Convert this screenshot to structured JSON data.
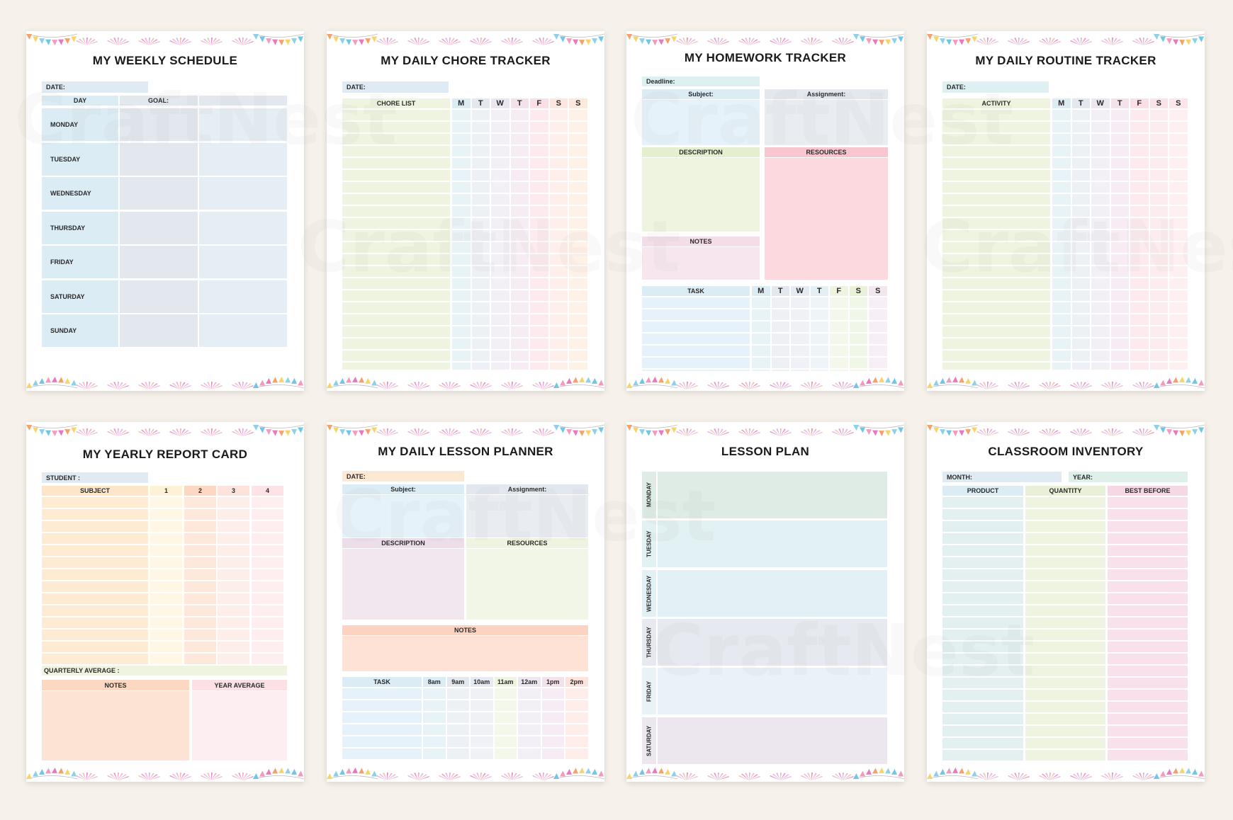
{
  "weekly": {
    "title": "MY WEEKLY SCHEDULE",
    "date": "DATE:",
    "day": "DAY",
    "goal": "GOAL:",
    "days": [
      "MONDAY",
      "TUESDAY",
      "WEDNESDAY",
      "THURSDAY",
      "FRIDAY",
      "SATURDAY",
      "SUNDAY"
    ]
  },
  "chore": {
    "title": "MY DAILY CHORE TRACKER",
    "date": "DATE:",
    "list": "CHORE LIST",
    "week": [
      "M",
      "T",
      "W",
      "T",
      "F",
      "S",
      "S"
    ]
  },
  "homework": {
    "title": "MY HOMEWORK TRACKER",
    "deadline": "Deadline:",
    "subject": "Subject:",
    "assignment": "Assignment:",
    "description": "DESCRIPTION",
    "resources": "RESOURCES",
    "notes": "NOTES",
    "task": "TASK",
    "week": [
      "M",
      "T",
      "W",
      "T",
      "F",
      "S",
      "S"
    ]
  },
  "routine": {
    "title": "MY DAILY ROUTINE TRACKER",
    "date": "DATE:",
    "activity": "ACTIVITY",
    "week": [
      "M",
      "T",
      "W",
      "T",
      "F",
      "S",
      "S"
    ]
  },
  "report": {
    "title": "MY YEARLY REPORT CARD",
    "student": "STUDENT :",
    "subject": "SUBJECT",
    "quarters": [
      "1",
      "2",
      "3",
      "4"
    ],
    "quarterly": "QUARTERLY AVERAGE :",
    "notes": "NOTES",
    "year_average": "YEAR AVERAGE"
  },
  "lesson_planner": {
    "title": "MY DAILY LESSON PLANNER",
    "date": "DATE:",
    "subject": "Subject:",
    "assignment": "Assignment:",
    "description": "DESCRIPTION",
    "resources": "RESOURCES",
    "notes": "NOTES",
    "task": "TASK",
    "hours": [
      "8am",
      "9am",
      "10am",
      "11am",
      "12am",
      "1pm",
      "2pm"
    ]
  },
  "lesson_plan": {
    "title": "LESSON PLAN",
    "days": [
      "MONDAY",
      "TUESDAY",
      "WEDNESDAY",
      "THURSDAY",
      "FRIDAY",
      "SATURDAY"
    ]
  },
  "inventory": {
    "title": "CLASSROOM  INVENTORY",
    "month": "MONTH:",
    "year": "YEAR:",
    "product": "PRODUCT",
    "quantity": "QUANTITY",
    "best_before": "BEST BEFORE"
  },
  "watermark": "CraftNest",
  "colors": {
    "background": "#f6f1ea",
    "blue": "#dcecf4",
    "slate": "#e3e8ef",
    "green": "#eef4df",
    "pink": "#fbd9df",
    "peach": "#fde3d3",
    "lavender": "#efe5f1"
  }
}
